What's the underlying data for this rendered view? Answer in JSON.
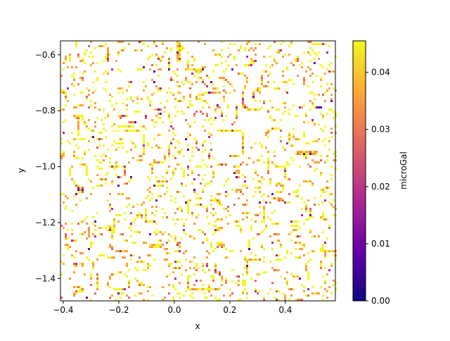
{
  "chart_data": {
    "type": "heatmap",
    "title": "",
    "xlabel": "x",
    "ylabel": "y",
    "xlim": [
      -0.41,
      0.58
    ],
    "ylim": [
      -1.48,
      -0.55
    ],
    "xticks": [
      -0.4,
      -0.2,
      0.0,
      0.2,
      0.4
    ],
    "xtick_labels": [
      "−0.4",
      "−0.2",
      "0.0",
      "0.2",
      "0.4"
    ],
    "yticks": [
      -0.6,
      -0.8,
      -1.0,
      -1.2,
      -1.4
    ],
    "ytick_labels": [
      "−0.6",
      "−0.8",
      "−1.0",
      "−1.2",
      "−1.4"
    ],
    "colorbar": {
      "label": "microGal",
      "min": 0.0,
      "max": 0.0455,
      "ticks": [
        0.0,
        0.01,
        0.02,
        0.03,
        0.04
      ],
      "tick_labels": [
        "0.00",
        "0.01",
        "0.02",
        "0.03",
        "0.04"
      ],
      "colormap": "plasma",
      "colors": [
        "#0d0887",
        "#6a00a8",
        "#b12a90",
        "#e16462",
        "#fca636",
        "#f0f921"
      ]
    },
    "background": "#ffffff",
    "field": "dense network of thin contour-like filaments, mostly yellow-orange with purple cores, on white background",
    "grid": false
  }
}
